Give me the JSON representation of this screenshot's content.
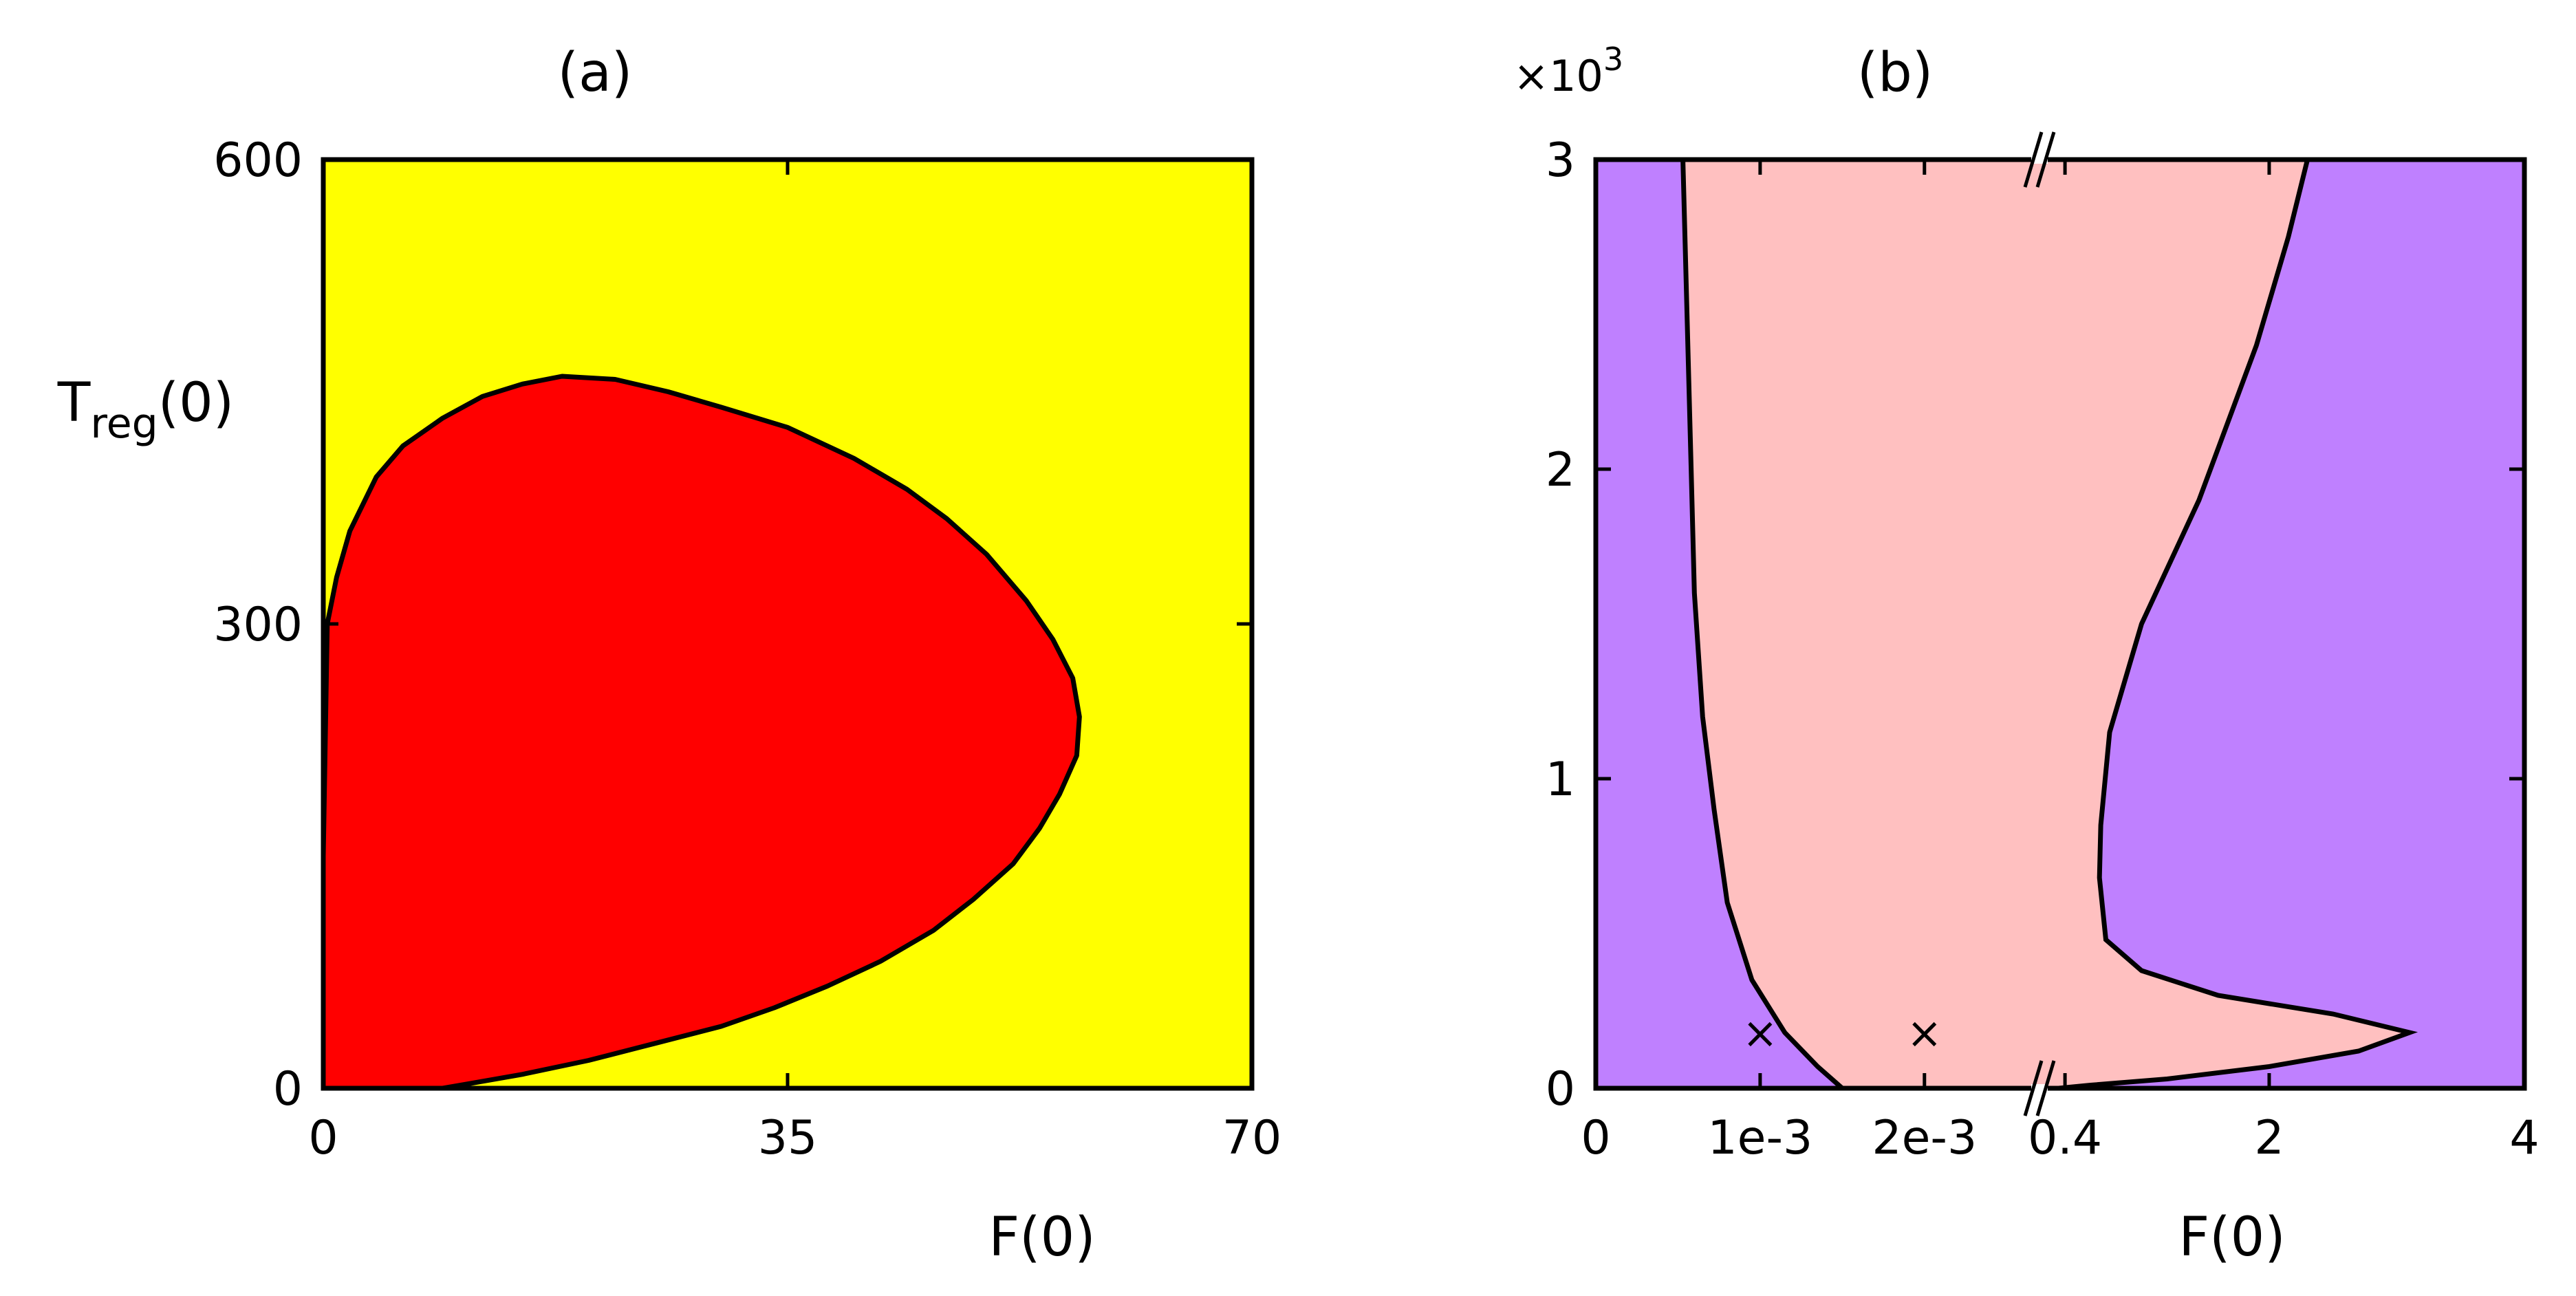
{
  "chart_data": [
    {
      "type": "area",
      "title": "(a)",
      "xlabel": "F(0)",
      "ylabel": {
        "main": "T",
        "sub": "reg",
        "tail": "(0)"
      },
      "xlim": [
        0,
        70
      ],
      "ylim": [
        0,
        600
      ],
      "xticks": [
        0,
        35,
        70
      ],
      "yticks": [
        0,
        300,
        600
      ],
      "xtick_labels": [
        "0",
        "35",
        "70"
      ],
      "ytick_labels": [
        "0",
        "300",
        "600"
      ],
      "grid": false,
      "colors": {
        "background": "#ffff00",
        "region": "#ff0000",
        "boundary": "#000000"
      },
      "regions": [
        {
          "fill": "#ff0000",
          "boundary": [
            [
              0,
              0
            ],
            [
              0,
              150
            ],
            [
              0.3,
              300
            ],
            [
              1,
              330
            ],
            [
              2,
              360
            ],
            [
              4,
              395
            ],
            [
              6,
              415
            ],
            [
              9,
              433
            ],
            [
              12,
              447
            ],
            [
              15,
              455
            ],
            [
              18,
              460
            ],
            [
              22,
              458
            ],
            [
              26,
              450
            ],
            [
              30,
              440
            ],
            [
              35,
              427
            ],
            [
              40,
              407
            ],
            [
              44,
              387
            ],
            [
              47,
              368
            ],
            [
              50,
              345
            ],
            [
              53,
              315
            ],
            [
              55,
              290
            ],
            [
              56.5,
              265
            ],
            [
              57,
              240
            ],
            [
              56.8,
              215
            ],
            [
              55.5,
              190
            ],
            [
              54,
              168
            ],
            [
              52,
              145
            ],
            [
              49,
              122
            ],
            [
              46,
              102
            ],
            [
              42,
              82
            ],
            [
              38,
              66
            ],
            [
              34,
              52
            ],
            [
              30,
              40
            ],
            [
              25,
              29
            ],
            [
              20,
              18
            ],
            [
              15,
              9
            ],
            [
              11,
              3
            ],
            [
              9,
              0
            ]
          ]
        }
      ]
    },
    {
      "type": "area",
      "title": "(b)",
      "xlabel": "F(0)",
      "scale_label": {
        "prefix": "×10",
        "exp": "3"
      },
      "ylim": [
        0,
        3
      ],
      "yticks": [
        0,
        1,
        2,
        3
      ],
      "ytick_labels": [
        "0",
        "1",
        "2",
        "3"
      ],
      "x_segments": [
        {
          "lim": [
            0,
            0.0027
          ],
          "ticks": [
            0,
            0.001,
            0.002
          ],
          "tick_labels": [
            "0",
            "1e-3",
            "2e-3"
          ]
        },
        {
          "lim": [
            0.2,
            4
          ],
          "ticks": [
            0.4,
            2,
            4
          ],
          "tick_labels": [
            "0.4",
            "2",
            "4"
          ]
        }
      ],
      "axis_break": "//",
      "grid": false,
      "colors": {
        "background": "#bf80ff",
        "region": "#ffc0c0",
        "boundary": "#000000",
        "marker": "#000000"
      },
      "left_boundary": [
        [
          0.00053,
          3.0
        ],
        [
          0.00055,
          2.6
        ],
        [
          0.00058,
          2.0
        ],
        [
          0.0006,
          1.6
        ],
        [
          0.00065,
          1.2
        ],
        [
          0.00072,
          0.9
        ],
        [
          0.0008,
          0.6
        ],
        [
          0.00095,
          0.35
        ],
        [
          0.00115,
          0.18
        ],
        [
          0.00135,
          0.07
        ],
        [
          0.0015,
          0.0
        ]
      ],
      "right_boundary": [
        [
          2.3,
          3.0
        ],
        [
          2.15,
          2.75
        ],
        [
          1.9,
          2.4
        ],
        [
          1.45,
          1.9
        ],
        [
          1.0,
          1.5
        ],
        [
          0.75,
          1.15
        ],
        [
          0.68,
          0.85
        ],
        [
          0.67,
          0.68
        ],
        [
          0.72,
          0.48
        ],
        [
          1.0,
          0.38
        ],
        [
          1.6,
          0.3
        ],
        [
          2.5,
          0.24
        ],
        [
          3.1,
          0.18
        ],
        [
          2.7,
          0.12
        ],
        [
          2.0,
          0.07
        ],
        [
          1.2,
          0.03
        ],
        [
          0.6,
          0.01
        ],
        [
          0.35,
          0.0
        ]
      ],
      "markers": [
        {
          "x": 0.001,
          "y": 0.18,
          "symbol": "×"
        },
        {
          "x": 0.002,
          "y": 0.18,
          "symbol": "×"
        }
      ]
    }
  ]
}
